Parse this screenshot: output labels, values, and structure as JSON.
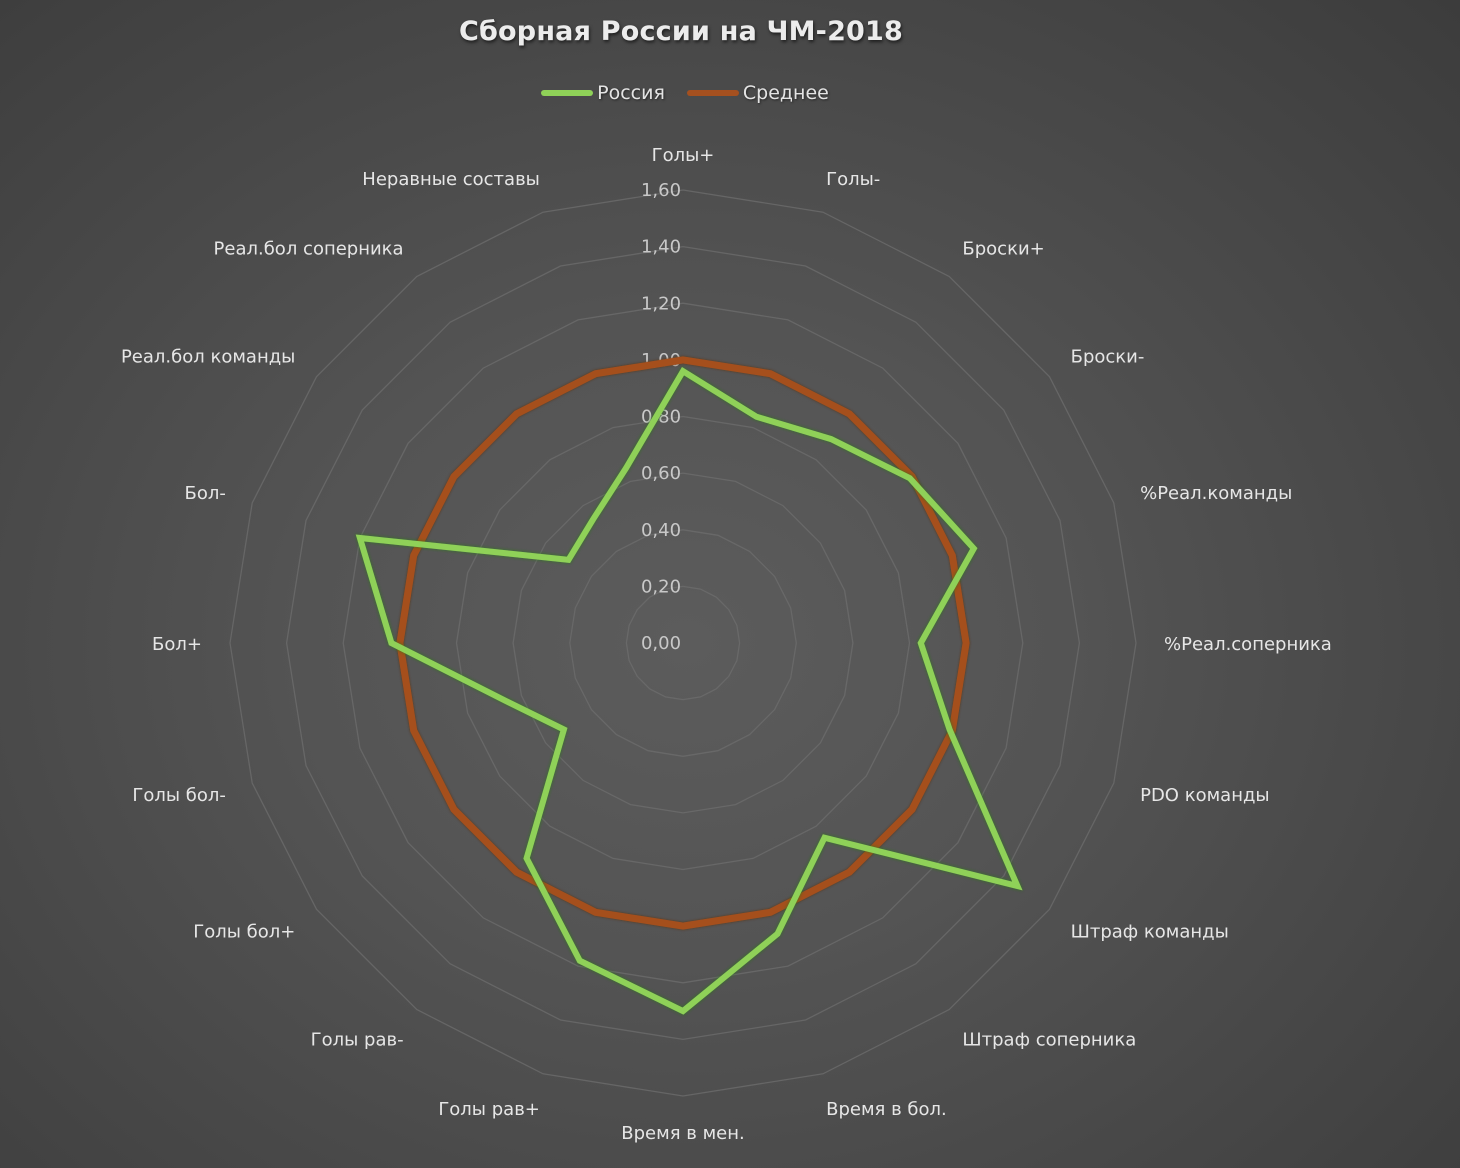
{
  "chart_data": {
    "type": "radar",
    "title": "Сборная России на ЧМ-2018",
    "legend_position": "top",
    "grid": true,
    "rlim": [
      0,
      1.6
    ],
    "ticks": [
      "0,00",
      "0,20",
      "0,40",
      "0,60",
      "0,80",
      "1,00",
      "1,20",
      "1,40",
      "1,60"
    ],
    "categories": [
      "Голы+",
      "Голы-",
      "Броски+",
      "Броски-",
      "%Реал.команды",
      "%Реал.соперника",
      "PDO команды",
      "Штраф команды",
      "Штраф соперника",
      "Время в бол.",
      "Время в мен.",
      "Голы рав+",
      "Голы рав-",
      "Голы бол+",
      "Голы бол-",
      "Бол+",
      "Бол-",
      "Реал.бол команды",
      "Реал.бол соперника",
      "Неравные составы"
    ],
    "series": [
      {
        "name": "Россия",
        "color": "#8fd158",
        "values": [
          0.96,
          0.84,
          0.89,
          0.99,
          1.08,
          0.84,
          0.99,
          1.46,
          0.85,
          1.08,
          1.3,
          1.18,
          0.94,
          0.52,
          0.66,
          1.03,
          1.2,
          0.5,
          0.54,
          0.65
        ]
      },
      {
        "name": "Среднее",
        "color": "#a5501f",
        "values": [
          1,
          1,
          1,
          1,
          1,
          1,
          1,
          1,
          1,
          1,
          1,
          1,
          1,
          1,
          1,
          1,
          1,
          1,
          1,
          1
        ]
      }
    ]
  },
  "legend": {
    "items": [
      {
        "label": "Россия",
        "color": "#8fd158"
      },
      {
        "label": "Среднее",
        "color": "#a5501f"
      }
    ]
  },
  "colors": {
    "gridline": "#6e6e6e",
    "text": "#e6e6e6"
  }
}
